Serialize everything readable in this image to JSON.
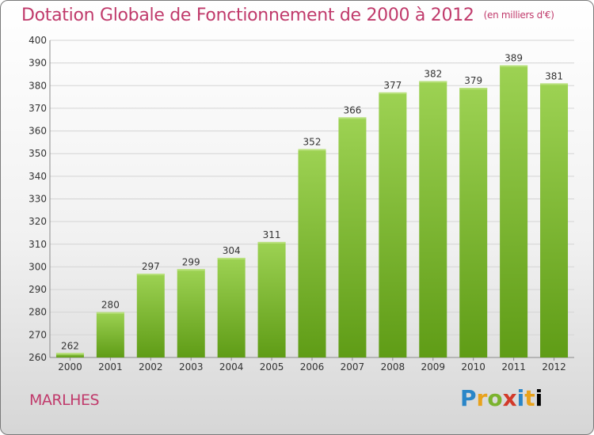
{
  "title": "Dotation Globale de Fonctionnement de 2000 à 2012",
  "subtitle": "(en milliers d'€)",
  "commune": "MARLHES",
  "brand": "Proxiti",
  "colors": {
    "bar_top": "#9dd253",
    "bar_bottom": "#5f9c16",
    "title": "#c03a6b"
  },
  "chart_data": {
    "type": "bar",
    "title": "Dotation Globale de Fonctionnement de 2000 à 2012",
    "subtitle": "(en milliers d'€)",
    "categories": [
      "2000",
      "2001",
      "2002",
      "2003",
      "2004",
      "2005",
      "2006",
      "2007",
      "2008",
      "2009",
      "2010",
      "2011",
      "2012"
    ],
    "values": [
      262,
      280,
      297,
      299,
      304,
      311,
      352,
      366,
      377,
      382,
      379,
      389,
      381
    ],
    "ylim": [
      260,
      400
    ],
    "yticks": [
      260,
      270,
      280,
      290,
      300,
      310,
      320,
      330,
      340,
      350,
      360,
      370,
      380,
      390,
      400
    ],
    "grid": true,
    "data_labels": true
  }
}
